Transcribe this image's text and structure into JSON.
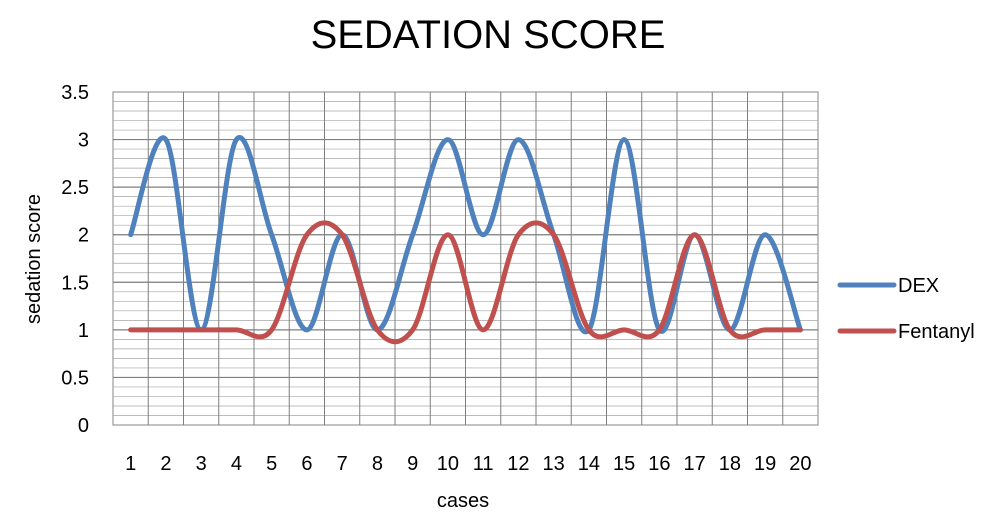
{
  "chart_data": {
    "type": "line",
    "title": "SEDATION SCORE",
    "xlabel": "cases",
    "ylabel": "sedation score",
    "categories": [
      "1",
      "2",
      "3",
      "4",
      "5",
      "6",
      "7",
      "8",
      "9",
      "10",
      "11",
      "12",
      "13",
      "14",
      "15",
      "16",
      "17",
      "18",
      "19",
      "20"
    ],
    "y_ticks": [
      "0",
      "0.5",
      "1",
      "1.5",
      "2",
      "2.5",
      "3",
      "3.5"
    ],
    "ylim": [
      0,
      3.5
    ],
    "grid": true,
    "smooth": true,
    "legend_position": "right",
    "series": [
      {
        "name": "DEX",
        "color": "#4f81bd",
        "values": [
          2,
          3,
          1,
          3,
          2,
          1,
          2,
          1,
          2,
          3,
          2,
          3,
          2,
          1,
          3,
          1,
          2,
          1,
          2,
          1
        ]
      },
      {
        "name": "Fentanyl",
        "color": "#c0504d",
        "values": [
          1,
          1,
          1,
          1,
          1,
          2,
          2,
          1,
          1,
          2,
          1,
          2,
          2,
          1,
          1,
          1,
          2,
          1,
          1,
          1
        ]
      }
    ]
  }
}
